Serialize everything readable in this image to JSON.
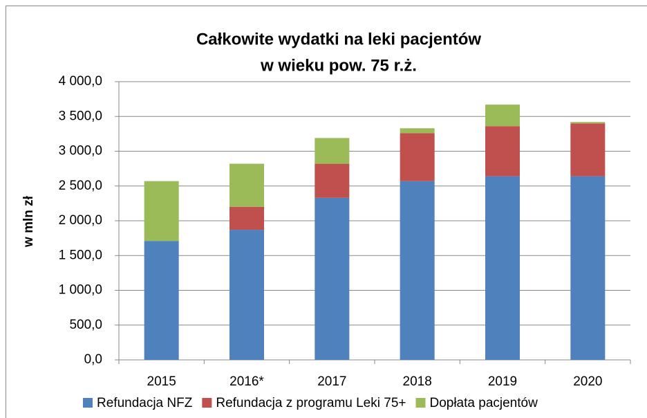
{
  "chart_data": {
    "type": "stacked_bar",
    "title": [
      "Całkowite wydatki na leki pacjentów",
      "w wieku pow. 75 r.ż."
    ],
    "y_label": "w mln zł",
    "categories": [
      "2015",
      "2016*",
      "2017",
      "2018",
      "2019",
      "2020"
    ],
    "series": [
      {
        "name": "Refundacja NFZ",
        "color": "#4f81bd",
        "values": [
          1710,
          1870,
          2330,
          2570,
          2640,
          2640
        ]
      },
      {
        "name": "Refundacja z programu Leki 75+",
        "color": "#c0504d",
        "values": [
          0,
          330,
          490,
          690,
          720,
          760
        ]
      },
      {
        "name": "Dopłata pacjentów",
        "color": "#9bbb59",
        "values": [
          860,
          620,
          370,
          70,
          310,
          20
        ]
      }
    ],
    "ylim": [
      0,
      4000
    ],
    "yticks": [
      {
        "value": 0,
        "label": "0,0"
      },
      {
        "value": 500,
        "label": "500,0"
      },
      {
        "value": 1000,
        "label": "1 000,0"
      },
      {
        "value": 1500,
        "label": "1 500,0"
      },
      {
        "value": 2000,
        "label": "2 000,0"
      },
      {
        "value": 2500,
        "label": "2 500,0"
      },
      {
        "value": 3000,
        "label": "3 000,0"
      },
      {
        "value": 3500,
        "label": "3 500,0"
      },
      {
        "value": 4000,
        "label": "4 000,0"
      }
    ],
    "grid": true,
    "legend": "bottom"
  }
}
